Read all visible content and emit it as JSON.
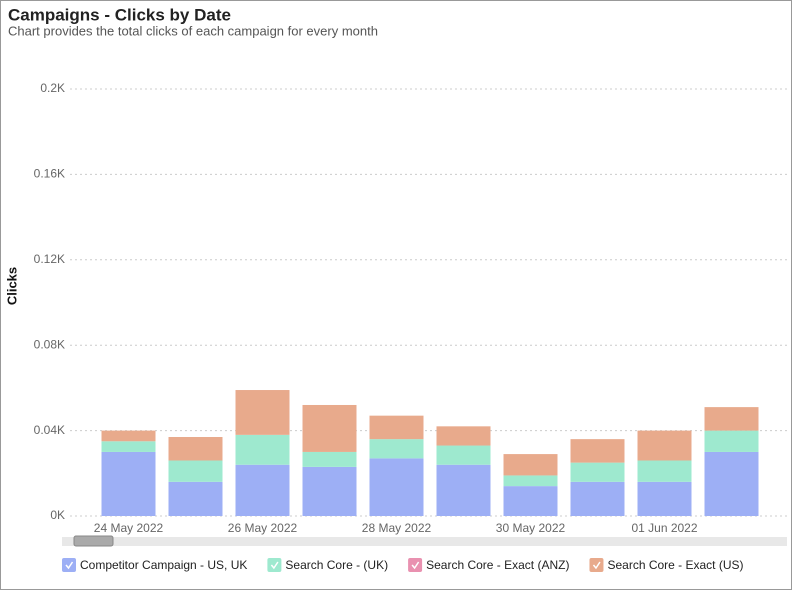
{
  "chart_data": {
    "type": "stacked_bar",
    "title": "Campaigns - Clicks by Date",
    "subtitle": "Chart provides the total clicks of each campaign for every month",
    "y_label": "Clicks",
    "categories": [
      "24 May 2022",
      null,
      "26 May 2022",
      null,
      "28 May 2022",
      null,
      "30 May 2022",
      null,
      "01 Jun 2022",
      null
    ],
    "series": [
      {
        "name": "Competitor Campaign - US, UK",
        "color": "#9daff5",
        "values": [
          30,
          16,
          24,
          23,
          27,
          24,
          14,
          16,
          16,
          30
        ]
      },
      {
        "name": "Search Core - (UK)",
        "color": "#9ee9cf",
        "values": [
          5,
          10,
          14,
          7,
          9,
          9,
          5,
          9,
          10,
          10
        ]
      },
      {
        "name": "Search Core - Exact (ANZ)",
        "color": "#e991b0",
        "values": [
          0,
          0,
          0,
          0,
          0,
          0,
          0,
          0,
          0,
          0
        ]
      },
      {
        "name": "Search Core - Exact (US)",
        "color": "#e8aa8c",
        "values": [
          5,
          11,
          21,
          22,
          11,
          9,
          10,
          11,
          14,
          11
        ]
      }
    ],
    "ylim": [
      0,
      200
    ],
    "yticks": [
      {
        "value": 0,
        "label": "0K"
      },
      {
        "value": 40,
        "label": "0.04K"
      },
      {
        "value": 80,
        "label": "0.08K"
      },
      {
        "value": 120,
        "label": "0.12K"
      },
      {
        "value": 160,
        "label": "0.16K"
      },
      {
        "value": 200,
        "label": "0.2K"
      }
    ],
    "grid": true
  }
}
